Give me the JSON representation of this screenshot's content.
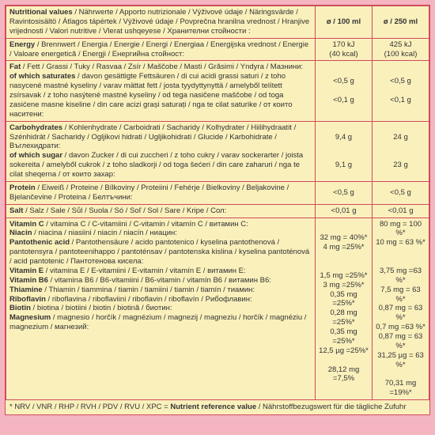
{
  "header": {
    "label": "<b>Nutritional values</b> / Nährwerte / Apporto nutrizionale / Výživové údaje / Näringsvärde / Ravintosisältö / Átlagos tápértek / Výživové údaje / Povprečna hranilna vrednost / Hranjive vrijednosti / Valori nutritive / Vlerat ushqeyese / Хранителни стойности :",
    "col1": "ø / 100 ml",
    "col2": "ø / 250 ml"
  },
  "rows": [
    {
      "label": "<b>Energy</b> / Brennwert / Energia / Energie / Energi / Energiaa / Energijska vrednost / Energie / Valoare energetică / Energji / Енергийна стойност:",
      "v1": "170 kJ<br>(40 kcal)",
      "v2": "425 kJ<br>(100 kcal)"
    },
    {
      "label": "<b>Fat</b> / Fett / Grassi / Tuky / Rasvaa / Zsír / Maščobe / Masti / Grăsimi / Yndyra / Мазнини:<br><b>of which saturates</b> / davon gesättigte Fettsäuren / di cui acidi grassi saturi / z toho nasycené mastné kyseliny / varav mättat fett / josta tyydyttynyttä / amelyből telített zsírsavak / z toho nasýtené mastné kyseliny / od tega nasičene maščobe / od toga zasićene masne kiseline / din care acizi grași saturați / nga te cilat saturike / от които наситени:",
      "v1": "&lt;0,5 g<br><br>&lt;0,1 g",
      "v2": "&lt;0,5 g<br><br>&lt;0,1 g"
    },
    {
      "label": "<b>Carbohydrates</b> / Kohlenhydrate / Carboidrati / Sacharidy / Kolhydrater / Hiilihydraatit / Szénhidrát / Sacharidy / Ogljikovi hidrati / Ugljikohidrati / Glucide / Karbohidrate / Въглехидрати:<br><b>of which sugar</b> / davon Zucker / di cui zuccheri / z toho cukry / varav sockerarter / joista sokereita / amelyből cukrok / z toho sladkorji / od toga šećeri / din care zaharuri / nga te cilat sheqerna / от които захар:",
      "v1": "9,4 g<br><br><br>9,1 g",
      "v2": "24 g<br><br><br>23 g"
    },
    {
      "label": "<b>Protein</b> / Eiweiß / Proteine / Bílkoviny / Proteiini / Fehérje / Bielkoviny / Beljakovine / Bjelančevine / Proteina / Белтъчини:",
      "v1": "&lt;0,5 g",
      "v2": "&lt;0,5 g"
    },
    {
      "label": "<b>Salt</b> / Salz / Sale / Sůl / Suola / Só / Soľ / Sol / Sare / Kripe / Сол:",
      "v1": "&lt;0,01 g",
      "v2": "&lt;0,01 g"
    },
    {
      "label": "<b>Vitamin C</b> / vitamina C / C-vitamiini / C-vitamin / vitamín C / витамин C:<br><b>Niacin</b> / niacina / niasiini / niacin / niacín / ниацин:<br><b>Pantothenic acid</b> / Pantothensäure / acido pantotenico / kyselina pantothenová / pantotensyra / pantoteenihappo / pantoténsav / pantotenska kislina / kyselina pantoténová / acid pantotenic / Пантотенова кисела:<br><b>Vitamin E</b> / vitamina E / E-vitamiini / E-vitamin / vitamín E / витамин E:<br><b>Vitamin B6</b> / vitamina B6 / B6-vitamiini / B6-vitamin / vitamín B6 / витамин B6:<br><b>Thiamine</b> / Thiamin / tiammina / tiamin / tiamiini / tiamin / tiamín / тиамин:<br><b>Riboflavin</b> / riboflavina / riboflaviini / riboflavin / riboflavín / Рибофлавин:<br><b>Biotin</b> / biotina / biotiini / biotin / biotină / биотин:<br><b>Magnesium</b> / magnesio / horčík / magnézium / magnezij / magneziu / horčík / magnéziu / magnezium / магнезий:",
      "v1": "32 mg = 40%*<br>4 mg =25%*<br><br><br>1,5 mg =25%*<br>3 mg =25%*<br>0,35 mg =25%*<br>0,28 mg =25%*<br>0,35 mg =25%*<br>12,5 µg =25%*<br><br>28,12 mg =7,5%",
      "v2": "80 mg = 100 %*<br>10 mg = 63 %*<br><br><br>3,75 mg =63 %*<br>7,5 mg = 63 %*<br>0,87 mg = 63 %*<br>0,7 mg =63 %*<br>0,87 mg = 63 %*<br>31,25 µg = 63 %*<br><br>70,31 mg =19%*"
    }
  ],
  "footnote": "* NRV / VNR / RHP / RVH / PDV / RVU / XPC = <b>Nutrient reference value</b> / Nährstoffbezugswert für die tägliche Zufuhr"
}
